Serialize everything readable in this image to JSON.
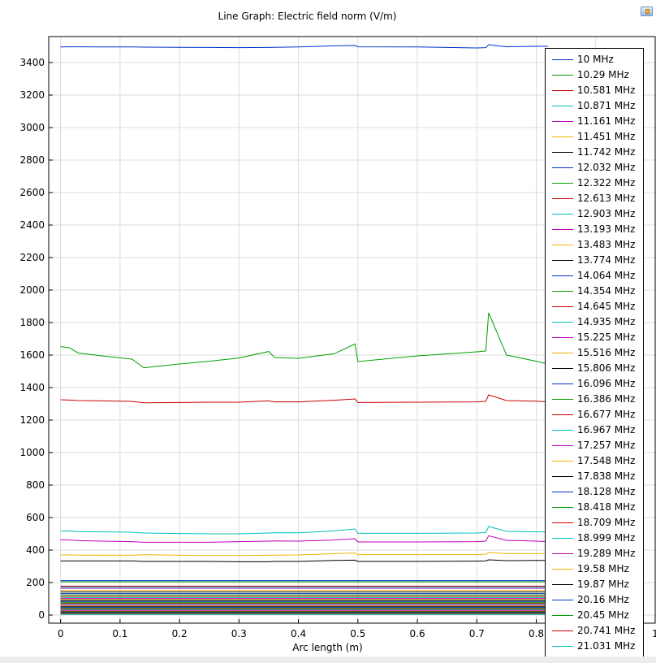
{
  "title": "Line Graph: Electric field norm (V/m)",
  "icons": {
    "corner": "plot-toolbar-icon"
  },
  "chart_data": {
    "type": "line",
    "title": "Line Graph: Electric field norm (V/m)",
    "xlabel": "Arc length (m)",
    "ylabel": "",
    "xlim": [
      -0.02,
      1.0
    ],
    "ylim": [
      -50,
      3560
    ],
    "x_ticks": [
      0,
      0.1,
      0.2,
      0.3,
      0.4,
      0.5,
      0.6,
      0.7,
      0.8,
      0.9,
      1
    ],
    "x_tick_labels": [
      "0",
      "0.1",
      "0.2",
      "0.3",
      "0.4",
      "0.5",
      "0.6",
      "0.7",
      "0.8",
      "",
      "1"
    ],
    "y_ticks": [
      0,
      200,
      400,
      600,
      800,
      1000,
      1200,
      1400,
      1600,
      1800,
      2000,
      2200,
      2400,
      2600,
      2800,
      3000,
      3200,
      3400
    ],
    "grid": true,
    "legend_position": "right",
    "colors": [
      "#0033cc",
      "#00a000",
      "#cc0000",
      "#00bfbf",
      "#bf00bf",
      "#f2b200",
      "#000000"
    ],
    "x": [
      0,
      0.015,
      0.03,
      0.07,
      0.12,
      0.14,
      0.2,
      0.25,
      0.3,
      0.35,
      0.36,
      0.4,
      0.46,
      0.495,
      0.5,
      0.6,
      0.7,
      0.715,
      0.72,
      0.75,
      0.8,
      0.82
    ],
    "series": [
      {
        "name": "10 MHz",
        "values": [
          3496,
          3497,
          3497,
          3496,
          3496,
          3495,
          3494,
          3493,
          3492,
          3493,
          3494,
          3496,
          3503,
          3505,
          3497,
          3496,
          3490,
          3492,
          3510,
          3497,
          3500,
          3500
        ]
      },
      {
        "name": "10.29 MHz",
        "values": [
          1652,
          1645,
          1612,
          1595,
          1575,
          1522,
          1545,
          1562,
          1582,
          1622,
          1585,
          1580,
          1608,
          1668,
          1560,
          1595,
          1620,
          1625,
          1860,
          1600,
          1562,
          1545
        ]
      },
      {
        "name": "10.581 MHz",
        "values": [
          1325,
          1323,
          1320,
          1318,
          1315,
          1306,
          1308,
          1310,
          1310,
          1318,
          1312,
          1312,
          1322,
          1330,
          1308,
          1310,
          1312,
          1315,
          1355,
          1320,
          1316,
          1312
        ]
      },
      {
        "name": "10.871 MHz",
        "values": [
          518,
          517,
          514,
          512,
          510,
          505,
          502,
          500,
          500,
          505,
          506,
          506,
          518,
          530,
          503,
          503,
          505,
          508,
          545,
          515,
          512,
          512
        ]
      },
      {
        "name": "11.161 MHz",
        "values": [
          463,
          462,
          458,
          455,
          452,
          448,
          448,
          448,
          452,
          455,
          456,
          455,
          462,
          470,
          450,
          450,
          452,
          455,
          488,
          460,
          455,
          452
        ]
      },
      {
        "name": "11.451 MHz",
        "values": [
          370,
          370,
          369,
          369,
          368,
          372,
          368,
          366,
          366,
          368,
          369,
          370,
          378,
          382,
          372,
          372,
          372,
          375,
          385,
          378,
          378,
          378
        ]
      },
      {
        "name": "11.742 MHz",
        "values": [
          333,
          333,
          333,
          333,
          333,
          330,
          330,
          330,
          328,
          328,
          330,
          330,
          336,
          338,
          330,
          330,
          332,
          333,
          340,
          335,
          336,
          336
        ]
      },
      {
        "name": "12.032 MHz",
        "values": [
          212,
          212,
          212,
          212,
          212,
          212,
          212,
          212,
          212,
          212,
          212,
          212,
          212,
          212,
          212,
          212,
          212,
          212,
          212,
          212,
          212,
          212
        ]
      },
      {
        "name": "12.322 MHz",
        "values": [
          205,
          205,
          205,
          205,
          205,
          205,
          205,
          205,
          205,
          205,
          205,
          205,
          205,
          205,
          205,
          205,
          205,
          205,
          205,
          205,
          205,
          205
        ]
      },
      {
        "name": "12.613 MHz",
        "values": [
          178,
          178,
          178,
          178,
          178,
          178,
          178,
          178,
          178,
          178,
          178,
          178,
          178,
          178,
          178,
          178,
          178,
          178,
          178,
          178,
          178,
          178
        ]
      },
      {
        "name": "12.903 MHz",
        "values": [
          172,
          172,
          172,
          172,
          172,
          172,
          172,
          172,
          172,
          172,
          172,
          172,
          172,
          172,
          172,
          172,
          172,
          172,
          172,
          172,
          172,
          172
        ]
      },
      {
        "name": "13.193 MHz",
        "values": [
          165,
          165,
          165,
          165,
          165,
          165,
          165,
          165,
          165,
          165,
          165,
          165,
          165,
          165,
          165,
          165,
          165,
          165,
          165,
          165,
          165,
          165
        ]
      },
      {
        "name": "13.483 MHz",
        "values": [
          152,
          152,
          152,
          152,
          152,
          152,
          152,
          152,
          152,
          152,
          152,
          152,
          152,
          152,
          152,
          152,
          152,
          152,
          152,
          152,
          152,
          152
        ]
      },
      {
        "name": "13.774 MHz",
        "values": [
          142,
          142,
          142,
          142,
          142,
          142,
          142,
          142,
          142,
          142,
          142,
          142,
          142,
          142,
          142,
          142,
          142,
          142,
          142,
          142,
          142,
          142
        ]
      },
      {
        "name": "14.064 MHz",
        "values": [
          132,
          132,
          132,
          132,
          132,
          132,
          132,
          132,
          132,
          132,
          132,
          132,
          132,
          132,
          132,
          132,
          132,
          132,
          132,
          132,
          132,
          132
        ]
      },
      {
        "name": "14.354 MHz",
        "values": [
          124,
          124,
          124,
          124,
          124,
          124,
          124,
          124,
          124,
          124,
          124,
          124,
          124,
          124,
          124,
          124,
          124,
          124,
          124,
          124,
          124,
          124
        ]
      },
      {
        "name": "14.645 MHz",
        "values": [
          115,
          115,
          115,
          115,
          115,
          115,
          115,
          115,
          115,
          115,
          115,
          115,
          115,
          115,
          115,
          115,
          115,
          115,
          115,
          115,
          115,
          115
        ]
      },
      {
        "name": "14.935 MHz",
        "values": [
          108,
          108,
          108,
          108,
          108,
          108,
          108,
          108,
          108,
          108,
          108,
          108,
          108,
          108,
          108,
          108,
          108,
          108,
          108,
          108,
          108,
          108
        ]
      },
      {
        "name": "15.225 MHz",
        "values": [
          102,
          102,
          102,
          102,
          102,
          102,
          102,
          102,
          102,
          102,
          102,
          102,
          102,
          102,
          102,
          102,
          102,
          102,
          102,
          102,
          102,
          102
        ]
      },
      {
        "name": "15.516 MHz",
        "values": [
          96,
          96,
          96,
          96,
          96,
          96,
          96,
          96,
          96,
          96,
          96,
          96,
          96,
          96,
          96,
          96,
          96,
          96,
          96,
          96,
          96,
          96
        ]
      },
      {
        "name": "15.806 MHz",
        "values": [
          90,
          90,
          90,
          90,
          90,
          90,
          90,
          90,
          90,
          90,
          90,
          90,
          90,
          90,
          90,
          90,
          90,
          90,
          90,
          90,
          90,
          90
        ]
      },
      {
        "name": "16.096 MHz",
        "values": [
          84,
          84,
          84,
          84,
          84,
          84,
          84,
          84,
          84,
          84,
          84,
          84,
          84,
          84,
          84,
          84,
          84,
          84,
          84,
          84,
          84,
          84
        ]
      },
      {
        "name": "16.386 MHz",
        "values": [
          78,
          78,
          78,
          78,
          78,
          78,
          78,
          78,
          78,
          78,
          78,
          78,
          78,
          78,
          78,
          78,
          78,
          78,
          78,
          78,
          78,
          78
        ]
      },
      {
        "name": "16.677 MHz",
        "values": [
          72,
          72,
          72,
          72,
          72,
          72,
          72,
          72,
          72,
          72,
          72,
          72,
          72,
          72,
          72,
          72,
          72,
          72,
          72,
          72,
          72,
          72
        ]
      },
      {
        "name": "16.967 MHz",
        "values": [
          66,
          66,
          66,
          66,
          66,
          66,
          66,
          66,
          66,
          66,
          66,
          66,
          66,
          66,
          66,
          66,
          66,
          66,
          66,
          66,
          66,
          66
        ]
      },
      {
        "name": "17.257 MHz",
        "values": [
          61,
          61,
          61,
          61,
          61,
          61,
          61,
          61,
          61,
          61,
          61,
          61,
          61,
          61,
          61,
          61,
          61,
          61,
          61,
          61,
          61,
          61
        ]
      },
      {
        "name": "17.548 MHz",
        "values": [
          56,
          56,
          56,
          56,
          56,
          56,
          56,
          56,
          56,
          56,
          56,
          56,
          56,
          56,
          56,
          56,
          56,
          56,
          56,
          56,
          56,
          56
        ]
      },
      {
        "name": "17.838 MHz",
        "values": [
          51,
          51,
          51,
          51,
          51,
          51,
          51,
          51,
          51,
          51,
          51,
          51,
          51,
          51,
          51,
          51,
          51,
          51,
          51,
          51,
          51,
          51
        ]
      },
      {
        "name": "18.128 MHz",
        "values": [
          46,
          46,
          46,
          46,
          46,
          46,
          46,
          46,
          46,
          46,
          46,
          46,
          46,
          46,
          46,
          46,
          46,
          46,
          46,
          46,
          46,
          46
        ]
      },
      {
        "name": "18.418 MHz",
        "values": [
          41,
          41,
          41,
          41,
          41,
          41,
          41,
          41,
          41,
          41,
          41,
          41,
          41,
          41,
          41,
          41,
          41,
          41,
          41,
          41,
          41,
          41
        ]
      },
      {
        "name": "18.709 MHz",
        "values": [
          36,
          36,
          36,
          36,
          36,
          36,
          36,
          36,
          36,
          36,
          36,
          36,
          36,
          36,
          36,
          36,
          36,
          36,
          36,
          36,
          36,
          36
        ]
      },
      {
        "name": "18.999 MHz",
        "values": [
          32,
          32,
          32,
          32,
          32,
          32,
          32,
          32,
          32,
          32,
          32,
          32,
          32,
          32,
          32,
          32,
          32,
          32,
          32,
          32,
          32,
          32
        ]
      },
      {
        "name": "19.289 MHz",
        "values": [
          28,
          28,
          28,
          28,
          28,
          28,
          28,
          28,
          28,
          28,
          28,
          28,
          28,
          28,
          28,
          28,
          28,
          28,
          28,
          28,
          28,
          28
        ]
      },
      {
        "name": "19.58 MHz",
        "values": [
          24,
          24,
          24,
          24,
          24,
          24,
          24,
          24,
          24,
          24,
          24,
          24,
          24,
          24,
          24,
          24,
          24,
          24,
          24,
          24,
          24,
          24
        ]
      },
      {
        "name": "19.87 MHz",
        "values": [
          20,
          20,
          20,
          20,
          20,
          20,
          20,
          20,
          20,
          20,
          20,
          20,
          20,
          20,
          20,
          20,
          20,
          20,
          20,
          20,
          20,
          20
        ]
      },
      {
        "name": "20.16 MHz",
        "values": [
          16,
          16,
          16,
          16,
          16,
          16,
          16,
          16,
          16,
          16,
          16,
          16,
          16,
          16,
          16,
          16,
          16,
          16,
          16,
          16,
          16,
          16
        ]
      },
      {
        "name": "20.45 MHz",
        "values": [
          12,
          12,
          12,
          12,
          12,
          12,
          12,
          12,
          12,
          12,
          12,
          12,
          12,
          12,
          12,
          12,
          12,
          12,
          12,
          12,
          12,
          12
        ]
      },
      {
        "name": "20.741 MHz",
        "values": [
          8,
          8,
          8,
          8,
          8,
          8,
          8,
          8,
          8,
          8,
          8,
          8,
          8,
          8,
          8,
          8,
          8,
          8,
          8,
          8,
          8,
          8
        ]
      },
      {
        "name": "21.031 MHz",
        "values": [
          4,
          4,
          4,
          4,
          4,
          4,
          4,
          4,
          4,
          4,
          4,
          4,
          4,
          4,
          4,
          4,
          4,
          4,
          4,
          4,
          4,
          4
        ]
      }
    ]
  }
}
